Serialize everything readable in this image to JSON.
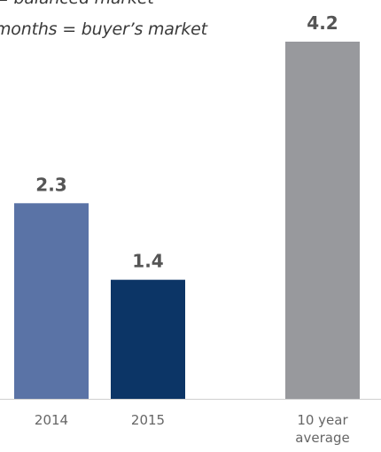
{
  "annotations": [
    "= balanced market",
    "months = buyer’s market"
  ],
  "colors": {
    "axis": "#cfcfcf",
    "value_label": "#555555",
    "tick_label": "#666666"
  },
  "chart_data": {
    "type": "bar",
    "categories": [
      "2014",
      "2015",
      "10 year average"
    ],
    "category_lines": [
      [
        "2014"
      ],
      [
        "2015"
      ],
      [
        "10 year",
        "average"
      ]
    ],
    "values": [
      2.3,
      1.4,
      4.2
    ],
    "value_labels": [
      "2.3",
      "1.4",
      "4.2"
    ],
    "colors": [
      "#5a73a6",
      "#0c3566",
      "#98999d"
    ],
    "title": "",
    "xlabel": "",
    "ylabel": "",
    "ylim": [
      0,
      4.2
    ],
    "grid": false,
    "legend": "none"
  }
}
